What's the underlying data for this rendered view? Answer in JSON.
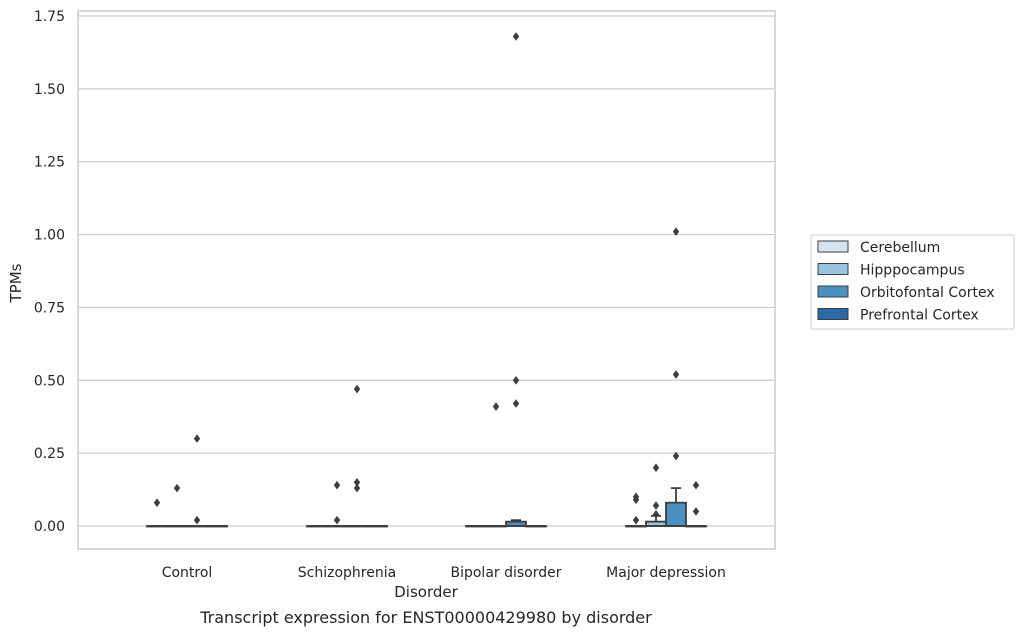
{
  "chart_data": {
    "type": "box",
    "title": "",
    "caption": "Transcript expression for ENST00000429980 by disorder",
    "xlabel": "Disorder",
    "ylabel": "TPMs",
    "ylim": [
      -0.08,
      1.76
    ],
    "yticks": [
      0.0,
      0.25,
      0.5,
      0.75,
      1.0,
      1.25,
      1.5,
      1.75
    ],
    "ytick_labels": [
      "0.00",
      "0.25",
      "0.50",
      "0.75",
      "1.00",
      "1.25",
      "1.50",
      "1.75"
    ],
    "grid": "horizontal",
    "legend_position": "right",
    "categories": [
      "Control",
      "Schizophrenia",
      "Bipolar disorder",
      "Major depression"
    ],
    "series": [
      {
        "name": "Cerebellum",
        "color": "#d5e3f0"
      },
      {
        "name": "Hipppocampus",
        "color": "#98c4df"
      },
      {
        "name": "Orbitofontal Cortex",
        "color": "#4a90c2"
      },
      {
        "name": "Prefrontal Cortex",
        "color": "#2a6aa8"
      }
    ],
    "boxes": [
      {
        "category": 0,
        "series": 0,
        "q1": 0,
        "median": 0,
        "q3": 0,
        "whisker_low": 0,
        "whisker_high": 0,
        "outliers": [
          0.08
        ]
      },
      {
        "category": 0,
        "series": 1,
        "q1": 0,
        "median": 0,
        "q3": 0,
        "whisker_low": 0,
        "whisker_high": 0,
        "outliers": [
          0.13
        ]
      },
      {
        "category": 0,
        "series": 2,
        "q1": 0,
        "median": 0,
        "q3": 0,
        "whisker_low": 0,
        "whisker_high": 0,
        "outliers": [
          0.3,
          0.02
        ]
      },
      {
        "category": 0,
        "series": 3,
        "q1": 0,
        "median": 0,
        "q3": 0,
        "whisker_low": 0,
        "whisker_high": 0,
        "outliers": []
      },
      {
        "category": 1,
        "series": 0,
        "q1": 0,
        "median": 0,
        "q3": 0,
        "whisker_low": 0,
        "whisker_high": 0,
        "outliers": []
      },
      {
        "category": 1,
        "series": 1,
        "q1": 0,
        "median": 0,
        "q3": 0,
        "whisker_low": 0,
        "whisker_high": 0,
        "outliers": [
          0.14,
          0.02
        ]
      },
      {
        "category": 1,
        "series": 2,
        "q1": 0,
        "median": 0,
        "q3": 0,
        "whisker_low": 0,
        "whisker_high": 0,
        "outliers": [
          0.47,
          0.15,
          0.13
        ]
      },
      {
        "category": 1,
        "series": 3,
        "q1": 0,
        "median": 0,
        "q3": 0,
        "whisker_low": 0,
        "whisker_high": 0,
        "outliers": []
      },
      {
        "category": 2,
        "series": 0,
        "q1": 0,
        "median": 0,
        "q3": 0,
        "whisker_low": 0,
        "whisker_high": 0,
        "outliers": []
      },
      {
        "category": 2,
        "series": 1,
        "q1": 0,
        "median": 0,
        "q3": 0,
        "whisker_low": 0,
        "whisker_high": 0,
        "outliers": [
          0.41
        ]
      },
      {
        "category": 2,
        "series": 2,
        "q1": 0,
        "median": 0,
        "q3": 0.015,
        "whisker_low": 0,
        "whisker_high": 0.02,
        "outliers": [
          1.68,
          0.5,
          0.42
        ]
      },
      {
        "category": 2,
        "series": 3,
        "q1": 0,
        "median": 0,
        "q3": 0,
        "whisker_low": 0,
        "whisker_high": 0,
        "outliers": []
      },
      {
        "category": 3,
        "series": 0,
        "q1": 0,
        "median": 0,
        "q3": 0,
        "whisker_low": 0,
        "whisker_high": 0,
        "outliers": [
          0.1,
          0.09,
          0.02
        ]
      },
      {
        "category": 3,
        "series": 1,
        "q1": 0,
        "median": 0,
        "q3": 0.015,
        "whisker_low": 0,
        "whisker_high": 0.035,
        "outliers": [
          0.2,
          0.07,
          0.04
        ]
      },
      {
        "category": 3,
        "series": 2,
        "q1": 0,
        "median": 0,
        "q3": 0.08,
        "whisker_low": 0,
        "whisker_high": 0.13,
        "outliers": [
          1.01,
          0.52,
          0.24
        ]
      },
      {
        "category": 3,
        "series": 3,
        "q1": 0,
        "median": 0,
        "q3": 0,
        "whisker_low": 0,
        "whisker_high": 0,
        "outliers": [
          0.14,
          0.05
        ]
      }
    ]
  }
}
